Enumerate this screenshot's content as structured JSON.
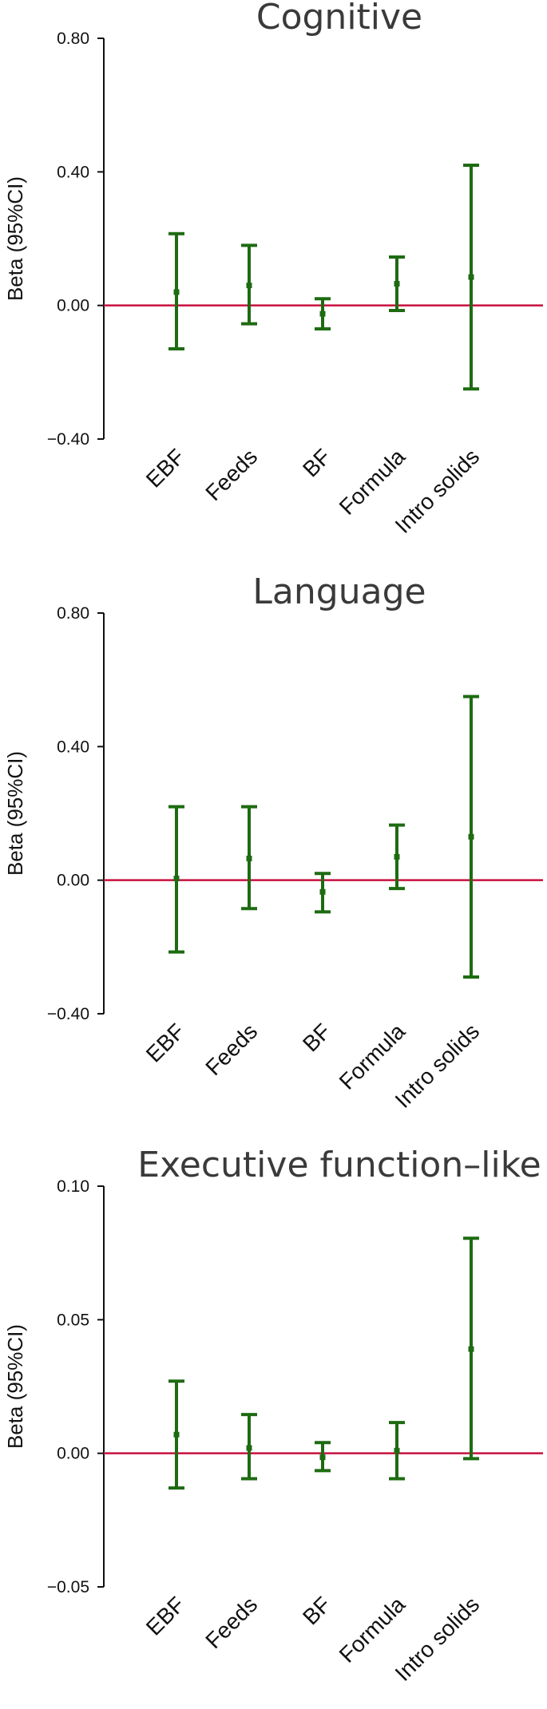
{
  "colors": {
    "ci": "#1e6b12",
    "reference_line": "#c8103e"
  },
  "chart_data": [
    {
      "type": "errorbar",
      "title": "Cognitive",
      "ylabel": "Beta (95%CI)",
      "ylim": [
        -0.4,
        0.8
      ],
      "yticks": [
        "0.80",
        "0.40",
        "0.00",
        "−0.40"
      ],
      "ytick_values": [
        0.8,
        0.4,
        0.0,
        -0.4
      ],
      "reference_y": 0.0,
      "categories": [
        "EBF",
        "Feeds",
        "BF",
        "Formula",
        "Intro solids"
      ],
      "estimates": [
        0.04,
        0.06,
        -0.025,
        0.065,
        0.085
      ],
      "lower": [
        -0.13,
        -0.055,
        -0.07,
        -0.015,
        -0.25
      ],
      "upper": [
        0.215,
        0.18,
        0.02,
        0.145,
        0.42
      ]
    },
    {
      "type": "errorbar",
      "title": "Language",
      "ylabel": "Beta (95%CI)",
      "ylim": [
        -0.4,
        0.8
      ],
      "yticks": [
        "0.80",
        "0.40",
        "0.00",
        "−0.40"
      ],
      "ytick_values": [
        0.8,
        0.4,
        0.0,
        -0.4
      ],
      "reference_y": 0.0,
      "categories": [
        "EBF",
        "Feeds",
        "BF",
        "Formula",
        "Intro solids"
      ],
      "estimates": [
        0.005,
        0.065,
        -0.035,
        0.07,
        0.13
      ],
      "lower": [
        -0.215,
        -0.085,
        -0.095,
        -0.025,
        -0.29
      ],
      "upper": [
        0.22,
        0.22,
        0.02,
        0.165,
        0.55
      ]
    },
    {
      "type": "errorbar",
      "title": "Executive function–like",
      "ylabel": "Beta (95%CI)",
      "ylim": [
        -0.05,
        0.1
      ],
      "yticks": [
        "0.10",
        "0.05",
        "0.00",
        "−0.05"
      ],
      "ytick_values": [
        0.1,
        0.05,
        0.0,
        -0.05
      ],
      "reference_y": 0.0,
      "categories": [
        "EBF",
        "Feeds",
        "BF",
        "Formula",
        "Intro solids"
      ],
      "estimates": [
        0.007,
        0.002,
        -0.0015,
        0.001,
        0.039
      ],
      "lower": [
        -0.013,
        -0.0095,
        -0.0065,
        -0.0095,
        -0.002
      ],
      "upper": [
        0.027,
        0.0145,
        0.004,
        0.0115,
        0.0805
      ]
    }
  ]
}
